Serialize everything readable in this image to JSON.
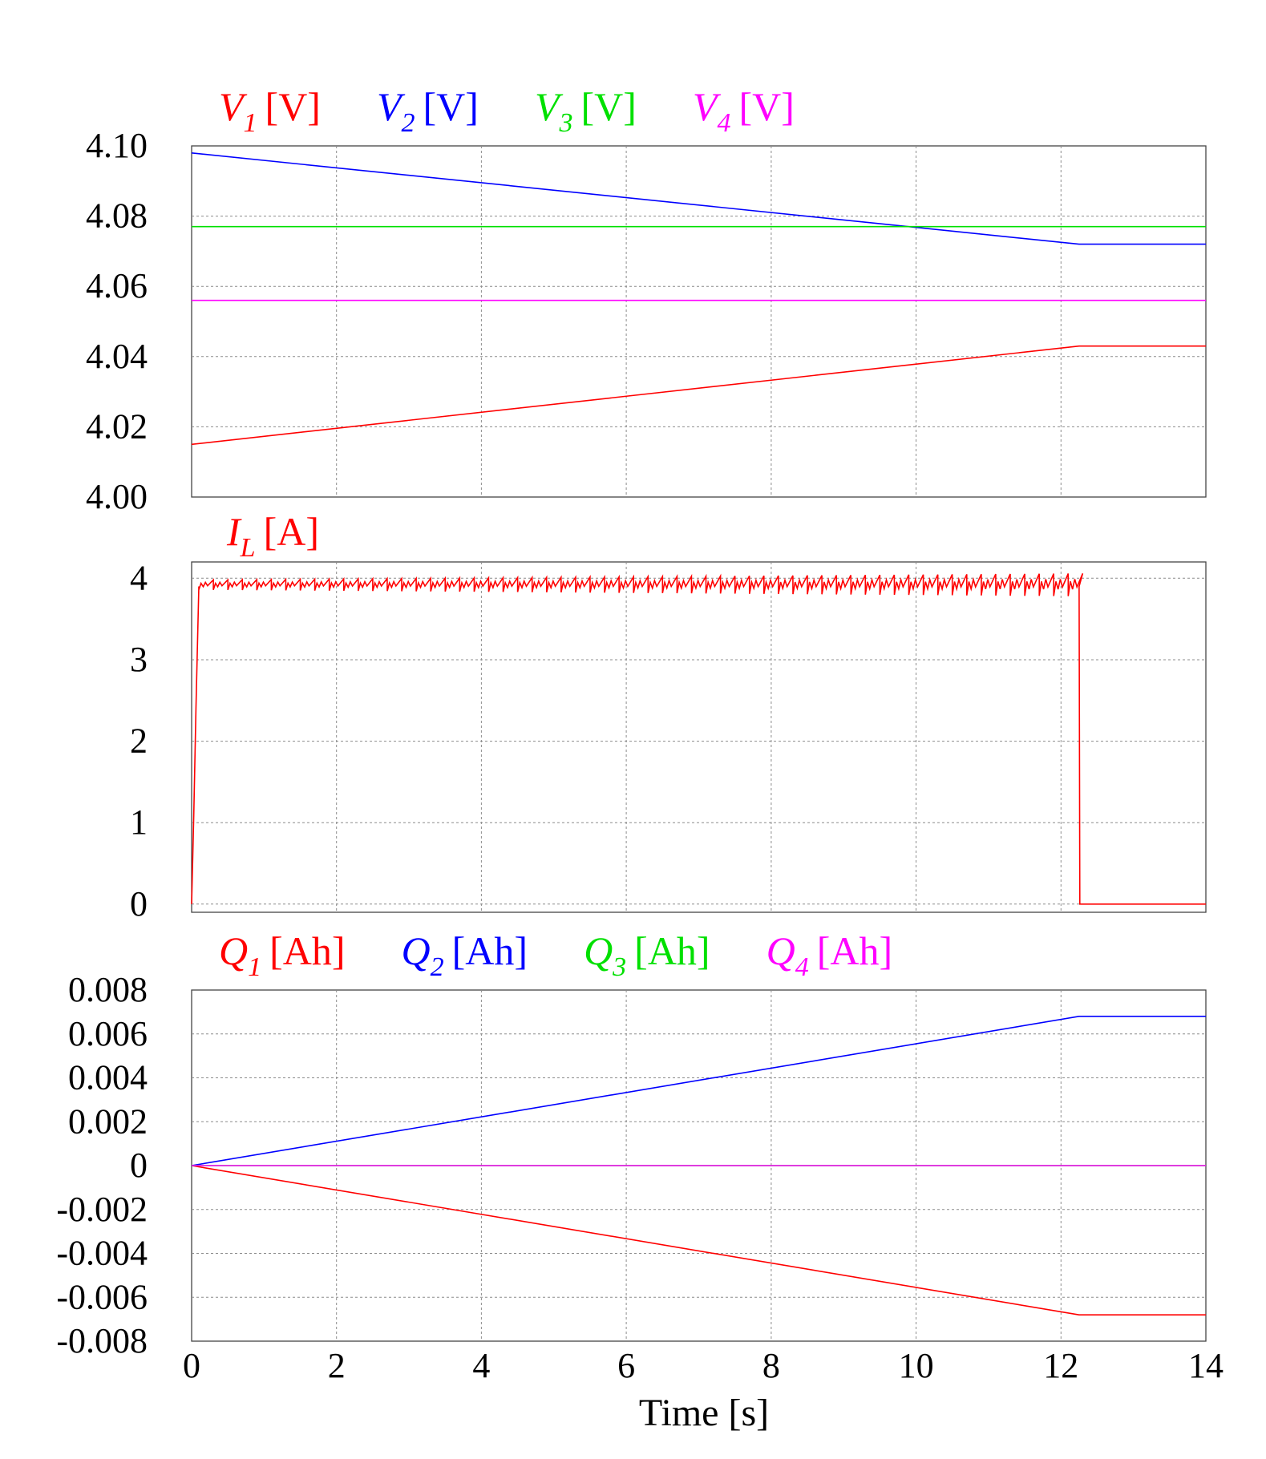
{
  "chart_data": [
    {
      "type": "line",
      "x_range": [
        0,
        14
      ],
      "ylim": [
        4.0,
        4.1
      ],
      "y_ticks": [
        "4.00",
        "4.02",
        "4.04",
        "4.06",
        "4.08",
        "4.10"
      ],
      "y_tick_values": [
        4.0,
        4.02,
        4.04,
        4.06,
        4.08,
        4.1
      ],
      "grid": true,
      "legend_position": "top",
      "series": [
        {
          "symbol": "V",
          "sub": "1",
          "unit": "[V]",
          "color": "#ff0000",
          "x": [
            0,
            12.25,
            14
          ],
          "y": [
            4.015,
            4.043,
            4.043
          ]
        },
        {
          "symbol": "V",
          "sub": "2",
          "unit": "[V]",
          "color": "#0000ff",
          "x": [
            0,
            12.25,
            14
          ],
          "y": [
            4.098,
            4.072,
            4.072
          ]
        },
        {
          "symbol": "V",
          "sub": "3",
          "unit": "[V]",
          "color": "#00e000",
          "x": [
            0,
            14
          ],
          "y": [
            4.077,
            4.077
          ]
        },
        {
          "symbol": "V",
          "sub": "4",
          "unit": "[V]",
          "color": "#ff00ff",
          "x": [
            0,
            14
          ],
          "y": [
            4.056,
            4.056
          ]
        }
      ]
    },
    {
      "type": "line",
      "x_range": [
        0,
        14
      ],
      "ylim": [
        -0.1,
        4.2
      ],
      "y_ticks": [
        "0",
        "1",
        "2",
        "3",
        "4"
      ],
      "y_tick_values": [
        0,
        1,
        2,
        3,
        4
      ],
      "grid": true,
      "legend_position": "top",
      "series": [
        {
          "symbol": "I",
          "sub": "L",
          "unit": "[A]",
          "color": "#ff0000",
          "x": [
            0,
            0.03,
            0.06,
            0.1,
            12.25,
            12.26,
            14
          ],
          "y": [
            0,
            1.1,
            2.4,
            3.9,
            3.9,
            0,
            0
          ],
          "ripple": {
            "from": 0.1,
            "to": 12.25,
            "mean": 3.92,
            "amplitude": 0.1
          }
        }
      ]
    },
    {
      "type": "line",
      "x_range": [
        0,
        14
      ],
      "x_ticks": [
        "0",
        "2",
        "4",
        "6",
        "8",
        "10",
        "12",
        "14"
      ],
      "x_tick_values": [
        0,
        2,
        4,
        6,
        8,
        10,
        12,
        14
      ],
      "xlabel": "Time [s]",
      "ylim": [
        -0.008,
        0.008
      ],
      "y_ticks": [
        "-0.008",
        "-0.006",
        "-0.004",
        "-0.002",
        "0",
        "0.002",
        "0.004",
        "0.006",
        "0.008"
      ],
      "y_tick_values": [
        -0.008,
        -0.006,
        -0.004,
        -0.002,
        0,
        0.002,
        0.004,
        0.006,
        0.008
      ],
      "grid": true,
      "legend_position": "top",
      "series": [
        {
          "symbol": "Q",
          "sub": "1",
          "unit": "[Ah]",
          "color": "#ff0000",
          "x": [
            0,
            12.25,
            14
          ],
          "y": [
            0,
            -0.0068,
            -0.0068
          ]
        },
        {
          "symbol": "Q",
          "sub": "2",
          "unit": "[Ah]",
          "color": "#0000ff",
          "x": [
            0,
            12.25,
            14
          ],
          "y": [
            0,
            0.0068,
            0.0068
          ]
        },
        {
          "symbol": "Q",
          "sub": "3",
          "unit": "[Ah]",
          "color": "#00e000",
          "x": [
            0,
            14
          ],
          "y": [
            0,
            0
          ]
        },
        {
          "symbol": "Q",
          "sub": "4",
          "unit": "[Ah]",
          "color": "#ff00ff",
          "x": [
            0,
            14
          ],
          "y": [
            0,
            0
          ]
        }
      ]
    }
  ]
}
